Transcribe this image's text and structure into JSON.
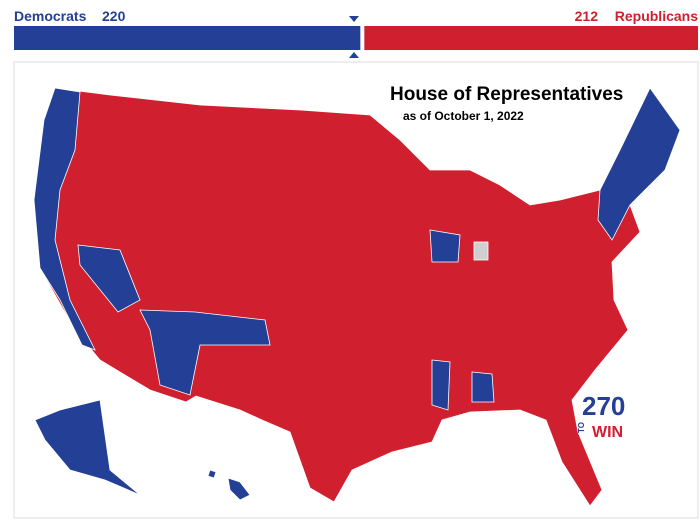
{
  "header": {
    "democrats": {
      "label": "Democrats",
      "seats": 220
    },
    "republicans": {
      "label": "Republicans",
      "seats": 212
    }
  },
  "map": {
    "title": "House of Representatives",
    "subtitle": "as of October 1, 2022",
    "logo": {
      "number": "270",
      "small": "TO",
      "word": "WIN"
    }
  }
}
